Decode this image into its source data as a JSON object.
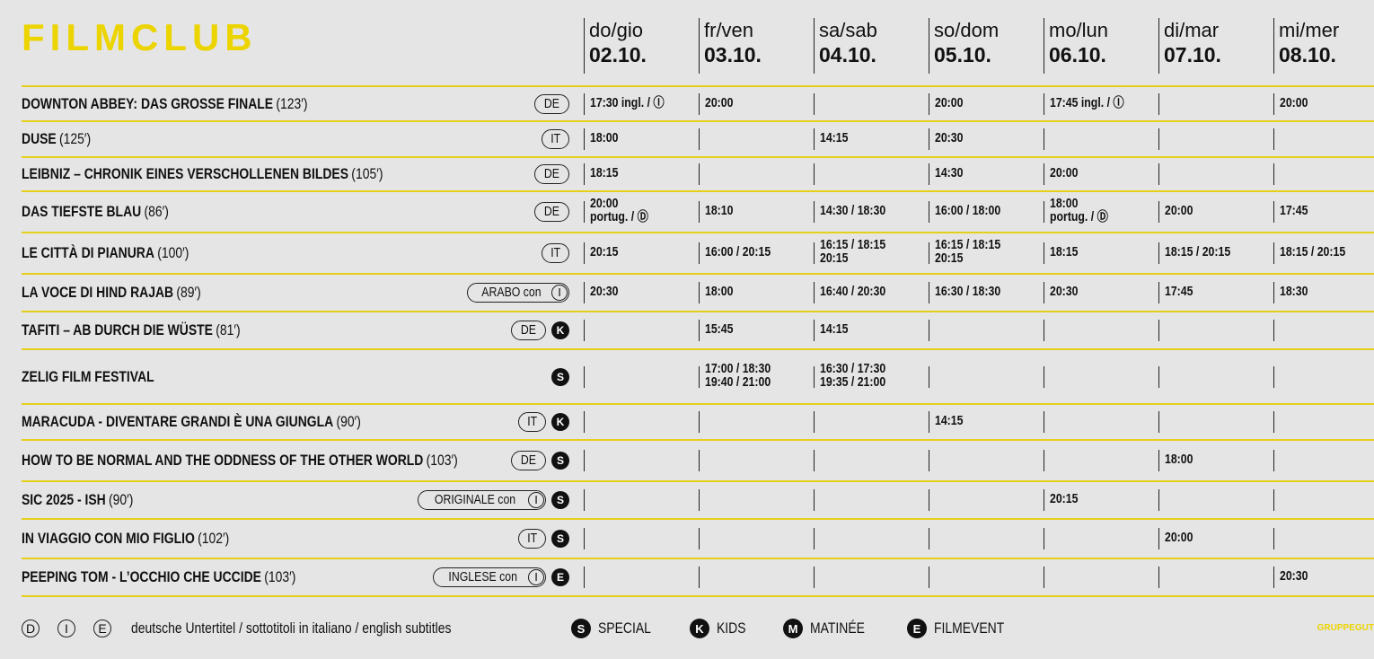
{
  "header": {
    "title": "FILMCLUB"
  },
  "days": [
    {
      "day": "do/gio",
      "date": "02.10."
    },
    {
      "day": "fr/ven",
      "date": "03.10."
    },
    {
      "day": "sa/sab",
      "date": "04.10."
    },
    {
      "day": "so/dom",
      "date": "05.10."
    },
    {
      "day": "mo/lun",
      "date": "06.10."
    },
    {
      "day": "di/mar",
      "date": "07.10."
    },
    {
      "day": "mi/mer",
      "date": "08.10."
    }
  ],
  "films": [
    {
      "title": "DOWNTON ABBEY: DAS GROSSE FINALE",
      "duration": "(123′)",
      "lang": "DE",
      "times": [
        [
          "17:30 ingl. / Ⓘ"
        ],
        [
          "20:00"
        ],
        [],
        [
          "20:00"
        ],
        [
          "17:45 ingl. / Ⓘ"
        ],
        [],
        [
          "20:00"
        ]
      ]
    },
    {
      "title": "DUSE",
      "duration": "(125′)",
      "lang": "IT",
      "times": [
        [
          "18:00"
        ],
        [],
        [
          "14:15"
        ],
        [
          "20:30"
        ],
        [],
        [],
        []
      ]
    },
    {
      "title": "LEIBNIZ – CHRONIK EINES VERSCHOLLENEN BILDES",
      "duration": "(105′)",
      "lang": "DE",
      "times": [
        [
          "18:15"
        ],
        [],
        [],
        [
          "14:30"
        ],
        [
          "20:00"
        ],
        [],
        []
      ]
    },
    {
      "title": "DAS TIEFSTE BLAU",
      "duration": "(86′)",
      "lang": "DE",
      "times": [
        [
          "20:00",
          "portug. / Ⓓ"
        ],
        [
          "18:10"
        ],
        [
          "14:30 / 18:30"
        ],
        [
          "16:00 / 18:00"
        ],
        [
          "18:00",
          "portug. / Ⓓ"
        ],
        [
          "20:00"
        ],
        [
          "17:45"
        ]
      ]
    },
    {
      "title": "LE CITTÀ DI PIANURA",
      "duration": "(100′)",
      "lang": "IT",
      "times": [
        [
          "20:15"
        ],
        [
          "16:00 / 20:15"
        ],
        [
          "16:15 / 18:15",
          "20:15"
        ],
        [
          "16:15 / 18:15",
          "20:15"
        ],
        [
          "18:15"
        ],
        [
          "18:15 / 20:15"
        ],
        [
          "18:15 / 20:15"
        ]
      ]
    },
    {
      "title": "LA VOCE DI HIND RAJAB",
      "duration": "(89′)",
      "lang": "ARABO con",
      "sub": "I",
      "times": [
        [
          "20:30"
        ],
        [
          "18:00"
        ],
        [
          "16:40 / 20:30"
        ],
        [
          "16:30 / 18:30"
        ],
        [
          "20:30"
        ],
        [
          "17:45"
        ],
        [
          "18:30"
        ]
      ]
    },
    {
      "title": "TAFITI – AB DURCH DIE WÜSTE",
      "duration": "(81′)",
      "lang": "DE",
      "badge": "K",
      "times": [
        [],
        [
          "15:45"
        ],
        [
          "14:15"
        ],
        [],
        [],
        [],
        []
      ]
    },
    {
      "title": "ZELIG FILM FESTIVAL",
      "badge": "S",
      "times": [
        [],
        [
          "17:00 / 18:30",
          "19:40 / 21:00"
        ],
        [
          "16:30 / 17:30",
          "19:35 / 21:00"
        ],
        [],
        [],
        [],
        []
      ]
    },
    {
      "title": "MARACUDA - DIVENTARE GRANDI È UNA GIUNGLA",
      "duration": "(90′)",
      "lang": "IT",
      "badge": "K",
      "times": [
        [],
        [],
        [],
        [
          "14:15"
        ],
        [],
        [],
        []
      ]
    },
    {
      "title": "HOW TO BE NORMAL AND THE ODDNESS OF THE OTHER WORLD",
      "duration": "(103′)",
      "lang": "DE",
      "badge": "S",
      "times": [
        [],
        [],
        [],
        [],
        [],
        [
          "18:00"
        ],
        []
      ]
    },
    {
      "title": "SIC 2025 - ISH",
      "duration": "(90′)",
      "lang": "ORIGINALE con",
      "sub": "I",
      "badge": "S",
      "times": [
        [],
        [],
        [],
        [],
        [
          "20:15"
        ],
        [],
        []
      ]
    },
    {
      "title": "IN VIAGGIO CON MIO FIGLIO",
      "duration": "(102′)",
      "lang": "IT",
      "badge": "S",
      "times": [
        [],
        [],
        [],
        [],
        [],
        [
          "20:00"
        ],
        []
      ]
    },
    {
      "title": "PEEPING TOM - L’OCCHIO CHE UCCIDE",
      "duration": "(103′)",
      "lang": "INGLESE con",
      "sub": "I",
      "badge": "E",
      "times": [
        [],
        [],
        [],
        [],
        [],
        [],
        [
          "20:30"
        ]
      ]
    }
  ],
  "legend": {
    "subtitles": [
      "D",
      "I",
      "E"
    ],
    "subtitles_text": "deutsche Untertitel / sottotitoli in italiano / english subtitles",
    "categories": [
      {
        "badge": "S",
        "label": "SPECIAL"
      },
      {
        "badge": "K",
        "label": "KIDS"
      },
      {
        "badge": "M",
        "label": "MATINÉE"
      },
      {
        "badge": "E",
        "label": "FILMEVENT"
      }
    ]
  },
  "footer": "GRUPPEGUT"
}
